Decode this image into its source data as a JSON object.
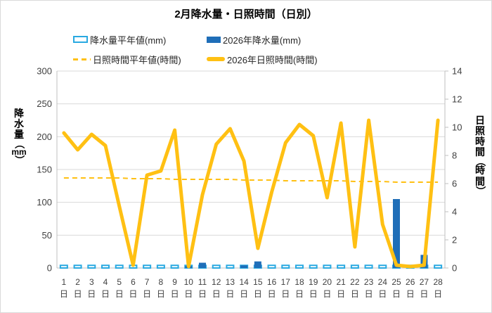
{
  "title": "2月降水量・日照時間（日別）",
  "legend": {
    "precip_normal_label": "降水量平年値(mm)",
    "precip_2026_label": "2026年降水量(mm)",
    "sun_normal_label": "日照時間平年値(時間)",
    "sun_2026_label": "2026年日照時間(時間)"
  },
  "colors": {
    "light_blue": "#29A9E1",
    "dark_blue": "#1F6EB8",
    "yellow": "#FFC013",
    "grid": "#D9D9D9",
    "axis": "#BFBFBF",
    "tick_text": "#404040"
  },
  "chart_data": {
    "type": "bar+line combo, dual axis",
    "categories": [
      "1日",
      "2日",
      "3日",
      "4日",
      "5日",
      "6日",
      "7日",
      "8日",
      "9日",
      "10日",
      "11日",
      "12日",
      "13日",
      "14日",
      "15日",
      "16日",
      "17日",
      "18日",
      "19日",
      "20日",
      "21日",
      "22日",
      "23日",
      "24日",
      "25日",
      "26日",
      "27日",
      "28日"
    ],
    "series": [
      {
        "name": "降水量平年値(mm)",
        "type": "bar-outline",
        "axis": "left",
        "values": [
          4,
          4,
          4,
          4,
          4,
          4,
          4,
          4,
          4,
          4,
          4,
          4,
          4,
          4,
          4,
          4,
          4,
          4,
          4,
          4,
          4,
          4,
          4,
          4,
          4,
          4,
          4,
          4
        ]
      },
      {
        "name": "2026年降水量(mm)",
        "type": "bar",
        "axis": "left",
        "values": [
          0,
          0,
          0,
          0,
          0,
          0,
          0,
          0,
          0,
          3,
          8,
          0,
          0,
          4,
          10,
          0,
          0,
          0,
          0,
          0,
          0,
          0,
          0,
          0,
          105,
          0,
          20,
          0
        ]
      },
      {
        "name": "日照時間平年値(時間)",
        "type": "dashed-line",
        "axis": "right",
        "values": [
          6.4,
          6.4,
          6.4,
          6.4,
          6.4,
          6.35,
          6.35,
          6.35,
          6.3,
          6.3,
          6.3,
          6.3,
          6.3,
          6.25,
          6.25,
          6.25,
          6.2,
          6.2,
          6.2,
          6.2,
          6.2,
          6.15,
          6.15,
          6.15,
          6.1,
          6.1,
          6.1,
          6.1
        ]
      },
      {
        "name": "2026年日照時間(時間)",
        "type": "line",
        "axis": "right",
        "values": [
          9.6,
          8.4,
          9.5,
          8.7,
          4.4,
          0.2,
          6.6,
          6.9,
          9.8,
          0.1,
          5.2,
          8.8,
          9.9,
          7.6,
          1.4,
          5.4,
          8.9,
          10.2,
          9.4,
          5.0,
          10.3,
          1.5,
          10.5,
          3.1,
          0.2,
          0.1,
          0.2,
          10.5
        ]
      }
    ],
    "left_axis": {
      "title": "降水量（mm）",
      "title_tokens": [
        "降",
        "水",
        "量",
        "（",
        "mm",
        "）"
      ],
      "ticks": [
        0,
        50,
        100,
        150,
        200,
        250,
        300
      ],
      "range": [
        0,
        300
      ]
    },
    "right_axis": {
      "title": "日照時間（時間）",
      "title_tokens": [
        "日",
        "照",
        "時",
        "間",
        "（",
        "時",
        "間",
        "）"
      ],
      "ticks": [
        0,
        2,
        4,
        6,
        8,
        10,
        12,
        14
      ],
      "range": [
        0,
        14
      ]
    },
    "x_label_suffix": "日",
    "grid": true,
    "legend_position": "top-left, two rows"
  }
}
